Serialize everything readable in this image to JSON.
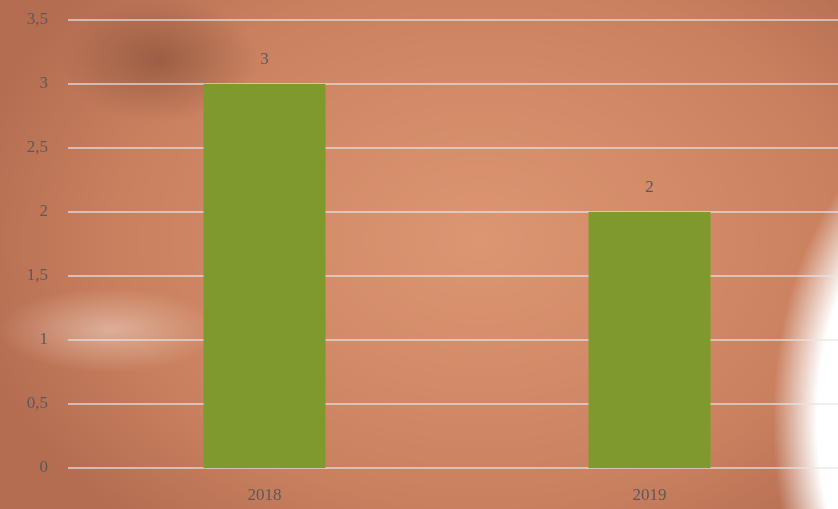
{
  "chart_data": {
    "type": "bar",
    "categories": [
      "2018",
      "2019"
    ],
    "values": [
      3,
      2
    ],
    "color": "#7f9a2c",
    "ylim": [
      0,
      3.5
    ],
    "yticks": [
      0,
      {
        "value": 0.5,
        "label": "0,5"
      },
      1,
      {
        "value": 1.5,
        "label": "1,5"
      },
      2,
      {
        "value": 2.5,
        "label": "2,5"
      },
      3,
      {
        "value": 3.5,
        "label": "3,5"
      }
    ],
    "grid": true
  }
}
